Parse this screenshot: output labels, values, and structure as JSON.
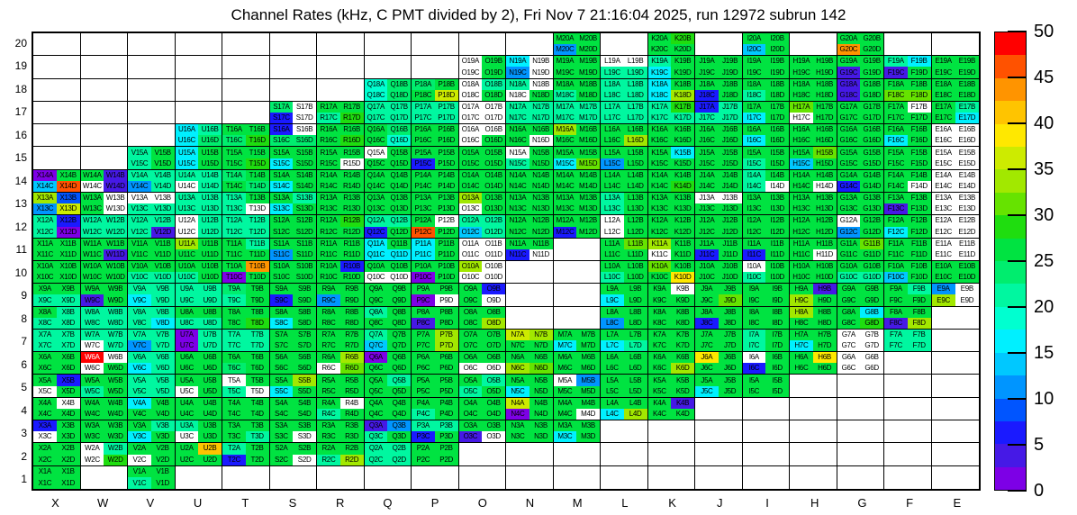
{
  "chart_data": {
    "type": "heatmap",
    "title": "Channel Rates (kHz, C PMT divided by 2), Fri Nov 7 21:16:04 2025, run 12972 subrun 142",
    "x_categories": [
      "X",
      "W",
      "V",
      "U",
      "T",
      "S",
      "R",
      "Q",
      "P",
      "O",
      "N",
      "M",
      "L",
      "K",
      "J",
      "I",
      "H",
      "G",
      "F",
      "E"
    ],
    "y_categories": [
      20,
      19,
      18,
      17,
      16,
      15,
      14,
      13,
      12,
      11,
      10,
      9,
      8,
      7,
      6,
      5,
      4,
      3,
      2,
      1
    ],
    "channel_suffixes": [
      "A",
      "B",
      "C",
      "D"
    ],
    "colorbar": {
      "min": 0,
      "max": 50,
      "ticks": [
        0,
        5,
        10,
        15,
        20,
        25,
        30,
        35,
        40,
        45,
        50
      ]
    },
    "cells": {
      "X14": "AKFS",
      "X13": "NDEO",
      "X12": "ICIA",
      "X11": "KKKK",
      "X10": "KKKK",
      "X9": "KKII",
      "X8": "KIII",
      "X7": "IIII",
      "X6": "KKKK",
      "X5": "KCWK",
      "X4": "KWKK",
      "X3": "CKWK",
      "X2": "KKKK",
      "X1": "KKKK",
      "W14": "KBWB",
      "W13": "KWKW",
      "W12": "IIII",
      "W11": "KKKB",
      "W10": "KKKK",
      "W9": "KKBK",
      "W8": "IIII",
      "W7": "IIWI",
      "W6": "TWWK",
      "W5": "KKIK",
      "W4": "KKKK",
      "W3": "KKKK",
      "W2": "WIWL",
      "V15": "IKIK",
      "V14": "IIEI",
      "V13": "WWII",
      "V12": "IIIB",
      "V11": "KKKK",
      "V10": "KKII",
      "V9": "IIGI",
      "V8": "IIIG",
      "V7": "IIEI",
      "V6": "IIGI",
      "V5": "IIII",
      "V4": "GKKK",
      "V3": "KIGK",
      "V2": "KKWK",
      "V1": "KKIK",
      "U16": "GIGJ",
      "U15": "GKGK",
      "U14": "IIWI",
      "U13": "IIII",
      "U12": "WIWI",
      "U11": "NKKK",
      "U10": "KKIK",
      "U9": "IIII",
      "U8": "KKII",
      "U7": "AIAI",
      "U6": "KKKK",
      "U5": "KKWK",
      "U4": "KKKK",
      "U3": "IKWK",
      "U2": "KQKK",
      "T16": "KKJL",
      "T15": "KKKL",
      "T14": "JKKJ",
      "T13": "IKIW",
      "T12": "IIII",
      "T11": "KIKK",
      "T10": "KRAK",
      "T9": "JKIK",
      "T8": "KKKL",
      "T7": "IIII",
      "T6": "KKJK",
      "T5": "WKIW",
      "T4": "KKKK",
      "T3": "KKKI",
      "T2": "IKCK",
      "S17": "JWCW",
      "S16": "CWJJ",
      "S15": "KKGK",
      "S14": "KKGK",
      "S13": "KIGK",
      "S12": "KKKK",
      "S11": "KKEK",
      "S10": "KKKK",
      "S9": "KKCK",
      "S8": "KKGK",
      "S7": "KKKK",
      "S6": "KKKK",
      "S5": "KNGK",
      "S4": "KKKK",
      "S3": "KKKW",
      "S2": "KKKW",
      "R17": "KKIL",
      "R16": "KKKL",
      "R15": "KKKW",
      "R14": "KKKK",
      "R13": "KKKK",
      "R12": "KLKK",
      "R11": "KKKK",
      "R10": "KCKK",
      "R9": "KKEK",
      "R8": "KKKK",
      "R7": "KKKK",
      "R6": "KNWM",
      "R5": "KKKK",
      "R4": "KWIK",
      "R3": "KKKK",
      "R2": "KKIN",
      "Q18": "HJHJ",
      "Q17": "IIII",
      "Q16": "KJKH",
      "Q15": "WKKK",
      "Q14": "KKKK",
      "Q13": "KKKK",
      "Q12": "IICK",
      "Q11": "GKGG",
      "Q10": "KKWW",
      "Q9": "KKKK",
      "Q8": "IKKK",
      "Q7": "IKFK",
      "Q6": "AKKK",
      "Q5": "KIKK",
      "Q4": "KKKK",
      "Q3": "BEIK",
      "Q2": "IIII",
      "P18": "JKKO",
      "P17": "IIII",
      "P16": "KKKK",
      "P15": "KKCK",
      "P14": "KKKK",
      "P13": "KKKK",
      "P12": "KWSK",
      "P11": "GKGK",
      "P10": "KKAK",
      "P9": "KKAW",
      "P8": "KKBK",
      "P7": "KNKN",
      "P6": "KKKK",
      "P5": "KKKK",
      "P4": "KKIK",
      "P3": "IICK",
      "P2": "KKKK",
      "O19": "WKWK",
      "O18": "WIWK",
      "O17": "WWWW",
      "O16": "WWWK",
      "O15": "KKKK",
      "O14": "KKKK",
      "O13": "NKWK",
      "O12": "IIFI",
      "O11": "WWWW",
      "O10": "NWWW",
      "O9": "KCKW",
      "O8": "KKKN",
      "O7": "KKKK",
      "O6": "KKWW",
      "O5": "KIIK",
      "O4": "KKKK",
      "O3": "KKBW",
      "N19": "GWEW",
      "N18": "IWWK",
      "N17": "IIII",
      "N16": "KKKW",
      "N15": "WKIK",
      "N14": "KKKK",
      "N13": "KKKK",
      "N12": "KKKK",
      "N11": "KKCW",
      "N7": "ONKK",
      "N6": "KKNM",
      "N5": "KKGK",
      "N4": "OKAK",
      "N3": "KKKK",
      "M20": "KKEK",
      "M19": "KKKK",
      "M18": "KKIK",
      "M17": "IIII",
      "M16": "NKKK",
      "M15": "KKGM",
      "M14": "KKKK",
      "M13": "KKKK",
      "M12": "KKCK",
      "M7": "KKGK",
      "M6": "KKKK",
      "M5": "WEKK",
      "M4": "KKKW",
      "M3": "KKGK",
      "L19": "WWII",
      "L18": "IIII",
      "L17": "IIII",
      "L16": "KKKN",
      "L15": "KKEK",
      "L14": "KKKK",
      "L13": "IKIK",
      "L12": "WKWK",
      "L11": "KMKK",
      "L10": "KKIK",
      "L9": "KKGK",
      "L8": "KKEK",
      "L7": "KKGI",
      "L6": "KKKK",
      "L5": "KKKK",
      "L4": "KKGN",
      "K20": "KLKK",
      "K19": "IKGK",
      "K18": "GKGN",
      "K17": "ILII",
      "K16": "KKKK",
      "K15": "KGKK",
      "K14": "KKKL",
      "K13": "KKKK",
      "K12": "KKKK",
      "K11": "NKWK",
      "K10": "MKKP",
      "K9": "KWKK",
      "K8": "KKKK",
      "K7": "KKKK",
      "K6": "KKKN",
      "K5": "KKKK",
      "K4": "KBKK",
      "J19": "KKKK",
      "J18": "KKCK",
      "J17": "CIII",
      "J16": "KKKK",
      "J15": "KKKK",
      "J14": "KKKK",
      "J13": "WWKK",
      "J12": "KKKK",
      "J11": "KKCK",
      "J10": "KKKK",
      "J9": "KKKM",
      "J8": "KKCK",
      "J7": "KKKK",
      "J6": "PKKK",
      "J5": "KKGK",
      "I20": "KKFK",
      "I19": "KKKK",
      "I18": "KKIK",
      "I17": "KKGK",
      "I16": "KKGK",
      "I15": "KKIK",
      "I14": "IKIW",
      "I13": "KKKK",
      "I12": "KKKK",
      "I11": "KKCK",
      "I10": "WKIK",
      "I9": "KKKK",
      "I8": "KKKK",
      "I7": "IKIK",
      "I6": "WKCK",
      "I5": "KKKK",
      "H19": "KKKK",
      "H18": "KKKK",
      "H17": "MKWK",
      "H16": "KKKK",
      "H15": "KMFK",
      "H14": "KKKW",
      "H13": "KKKK",
      "H12": "KKKK",
      "H11": "KKKW",
      "H10": "KKKK",
      "H9": "KBNK",
      "H8": "NKKK",
      "H7": "KKGK",
      "H6": "KPKK",
      "G20": "KKRK",
      "G19": "KKBK",
      "G18": "BKBK",
      "G17": "KKKK",
      "G16": "KKKK",
      "G15": "KKKK",
      "G14": "KKCK",
      "G13": "KKKK",
      "G12": "WKEK",
      "G11": "KMKK",
      "G10": "KKII",
      "G9": "KKKK",
      "G8": "KGKL",
      "G7": "WWWW",
      "G6": "WWWW",
      "F19": "IGBK",
      "F18": "KKMM",
      "F17": "KWKK",
      "F16": "KKGK",
      "F15": "KKKK",
      "F14": "KKKW",
      "F13": "KKBK",
      "F12": "KKGK",
      "F11": "KKKK",
      "F10": "KKFK",
      "F9": "KIKK",
      "F8": "KKBN",
      "F7": "IIII",
      "E19": "KKKK",
      "E18": "KKKK",
      "E17": "KIKG",
      "E16": "WWWW",
      "E15": "WWWW",
      "E14": "WWWW",
      "E13": "WWWW",
      "E12": "WWWW",
      "E11": "WWWW",
      "E10": "KKKK",
      "E9": "EWNW"
    }
  },
  "palette": {
    "A": "#7d00e6",
    "B": "#4619e6",
    "C": "#1a1aff",
    "D": "#0055ff",
    "E": "#0095ff",
    "F": "#00c8ff",
    "G": "#00f0ff",
    "H": "#00ffd0",
    "I": "#00f7a0",
    "J": "#00ed6e",
    "K": "#00e341",
    "L": "#1fdd0f",
    "M": "#66e300",
    "N": "#a2e800",
    "O": "#cdeb00",
    "P": "#ffe800",
    "Q": "#ffc400",
    "R": "#ff9400",
    "S": "#ff5200",
    "T": "#ff0000",
    "W": "#ffffff"
  },
  "level_values": {
    "A": 1,
    "B": 4,
    "C": 6,
    "D": 9,
    "E": 11,
    "F": 14,
    "G": 16,
    "H": 19,
    "I": 21,
    "J": 24,
    "K": 26,
    "L": 29,
    "M": 31,
    "N": 34,
    "O": 36,
    "P": 39,
    "Q": 41,
    "R": 44,
    "S": 46,
    "T": 49,
    "W": 0
  },
  "colorbar_levels": [
    "T",
    "S",
    "R",
    "Q",
    "P",
    "O",
    "N",
    "M",
    "L",
    "K",
    "J",
    "I",
    "H",
    "G",
    "F",
    "E",
    "D",
    "C",
    "B",
    "A"
  ],
  "white_text": [
    "W6A"
  ]
}
